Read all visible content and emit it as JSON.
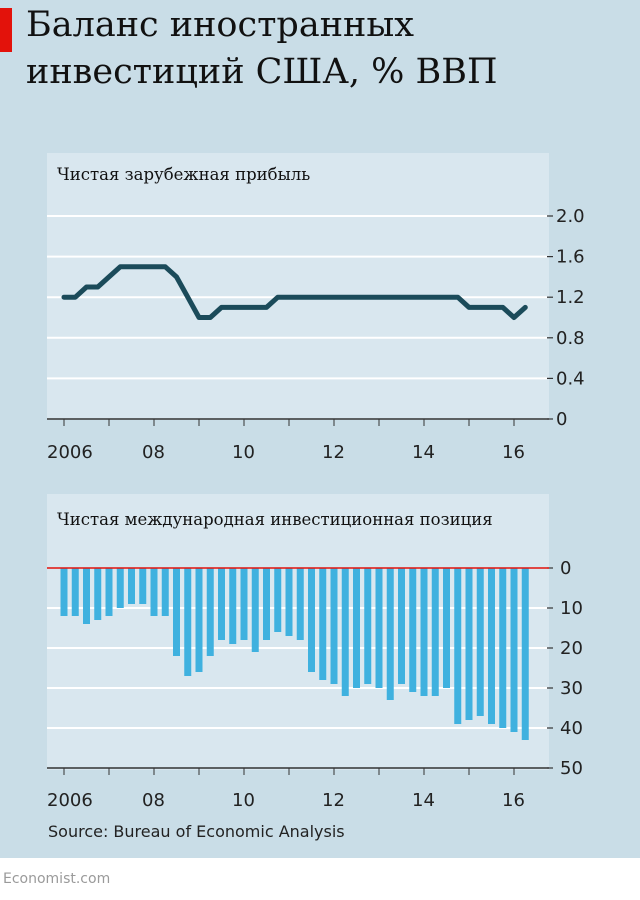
{
  "title": "Баланс иностранных инвестиций США, % ВВП",
  "source": "Source: Bureau of Economic Analysis",
  "footer": "Economist.com",
  "colors": {
    "background": "#c9dde7",
    "plot_background": "#d9e7ef",
    "accent": "#e3120b",
    "line": "#1b4b5a",
    "bars": "#3fb1df",
    "zero_line": "#e3120b"
  },
  "chart_data": [
    {
      "type": "line",
      "title": "Чистая зарубежная прибыль",
      "x_ticks": [
        "2006",
        "08",
        "10",
        "12",
        "14",
        "16"
      ],
      "y_ticks": [
        "2.0",
        "1.6",
        "1.2",
        "0.8",
        "0.4",
        "0"
      ],
      "ylim": [
        0,
        2.0
      ],
      "grid": true,
      "y_axis_side": "right",
      "series": [
        {
          "x": [
            2006.0,
            2006.25,
            2006.5,
            2006.75,
            2007.0,
            2007.25,
            2007.5,
            2007.75,
            2008.0,
            2008.25,
            2008.5,
            2008.75,
            2009.0,
            2009.25,
            2009.5,
            2009.75,
            2010.0,
            2010.25,
            2010.5,
            2010.75,
            2011.0,
            2011.25,
            2011.5,
            2011.75,
            2012.0,
            2012.25,
            2012.5,
            2012.75,
            2013.0,
            2013.25,
            2013.5,
            2013.75,
            2014.0,
            2014.25,
            2014.5,
            2014.75,
            2015.0,
            2015.25,
            2015.5,
            2015.75,
            2016.0,
            2016.25
          ],
          "values": [
            1.2,
            1.2,
            1.3,
            1.3,
            1.4,
            1.5,
            1.5,
            1.5,
            1.5,
            1.5,
            1.4,
            1.2,
            1.0,
            1.0,
            1.1,
            1.1,
            1.1,
            1.1,
            1.1,
            1.2,
            1.2,
            1.2,
            1.2,
            1.2,
            1.2,
            1.2,
            1.2,
            1.2,
            1.2,
            1.2,
            1.2,
            1.2,
            1.2,
            1.2,
            1.2,
            1.2,
            1.1,
            1.1,
            1.1,
            1.1,
            1.0,
            1.1
          ]
        }
      ]
    },
    {
      "type": "bar",
      "title": "Чистая международная инвестиционная позиция",
      "x_ticks": [
        "2006",
        "08",
        "10",
        "12",
        "14",
        "16"
      ],
      "y_ticks": [
        "0",
        "10",
        "20",
        "30",
        "40",
        "50"
      ],
      "ylim": [
        0,
        50
      ],
      "y_inverted": true,
      "grid": true,
      "y_axis_side": "right",
      "series": [
        {
          "x": [
            2006.0,
            2006.25,
            2006.5,
            2006.75,
            2007.0,
            2007.25,
            2007.5,
            2007.75,
            2008.0,
            2008.25,
            2008.5,
            2008.75,
            2009.0,
            2009.25,
            2009.5,
            2009.75,
            2010.0,
            2010.25,
            2010.5,
            2010.75,
            2011.0,
            2011.25,
            2011.5,
            2011.75,
            2012.0,
            2012.25,
            2012.5,
            2012.75,
            2013.0,
            2013.25,
            2013.5,
            2013.75,
            2014.0,
            2014.25,
            2014.5,
            2014.75,
            2015.0,
            2015.25,
            2015.5,
            2015.75,
            2016.0,
            2016.25
          ],
          "values": [
            12,
            12,
            14,
            13,
            12,
            10,
            9,
            9,
            12,
            12,
            22,
            27,
            26,
            22,
            18,
            19,
            18,
            21,
            18,
            16,
            17,
            18,
            26,
            28,
            29,
            32,
            30,
            29,
            30,
            33,
            29,
            31,
            32,
            32,
            30,
            39,
            38,
            37,
            39,
            40,
            41,
            43
          ]
        }
      ]
    }
  ]
}
